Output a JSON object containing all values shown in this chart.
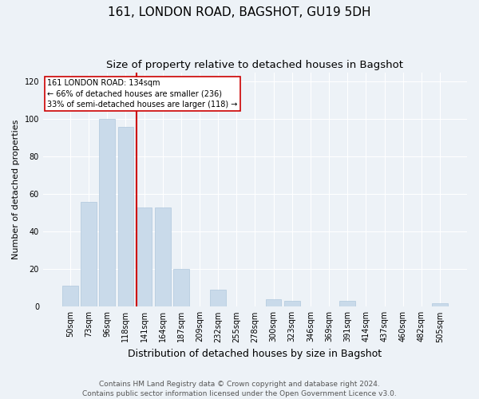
{
  "title1": "161, LONDON ROAD, BAGSHOT, GU19 5DH",
  "title2": "Size of property relative to detached houses in Bagshot",
  "xlabel": "Distribution of detached houses by size in Bagshot",
  "ylabel": "Number of detached properties",
  "categories": [
    "50sqm",
    "73sqm",
    "96sqm",
    "118sqm",
    "141sqm",
    "164sqm",
    "187sqm",
    "209sqm",
    "232sqm",
    "255sqm",
    "278sqm",
    "300sqm",
    "323sqm",
    "346sqm",
    "369sqm",
    "391sqm",
    "414sqm",
    "437sqm",
    "460sqm",
    "482sqm",
    "505sqm"
  ],
  "values": [
    11,
    56,
    100,
    96,
    53,
    53,
    20,
    0,
    9,
    0,
    0,
    4,
    3,
    0,
    0,
    3,
    0,
    0,
    0,
    0,
    2
  ],
  "bar_color": "#c9daea",
  "bar_edgecolor": "#b0c8dc",
  "annotation_title": "161 LONDON ROAD: 134sqm",
  "annotation_line1": "← 66% of detached houses are smaller (236)",
  "annotation_line2": "33% of semi-detached houses are larger (118) →",
  "annotation_box_color": "#ffffff",
  "annotation_box_edgecolor": "#cc0000",
  "redline_color": "#cc0000",
  "ylim": [
    0,
    125
  ],
  "yticks": [
    0,
    20,
    40,
    60,
    80,
    100,
    120
  ],
  "footer_line1": "Contains HM Land Registry data © Crown copyright and database right 2024.",
  "footer_line2": "Contains public sector information licensed under the Open Government Licence v3.0.",
  "bg_color": "#edf2f7",
  "plot_bg_color": "#edf2f7",
  "grid_color": "#ffffff",
  "title1_fontsize": 11,
  "title2_fontsize": 9.5,
  "xlabel_fontsize": 9,
  "ylabel_fontsize": 8,
  "tick_fontsize": 7,
  "footer_fontsize": 6.5
}
